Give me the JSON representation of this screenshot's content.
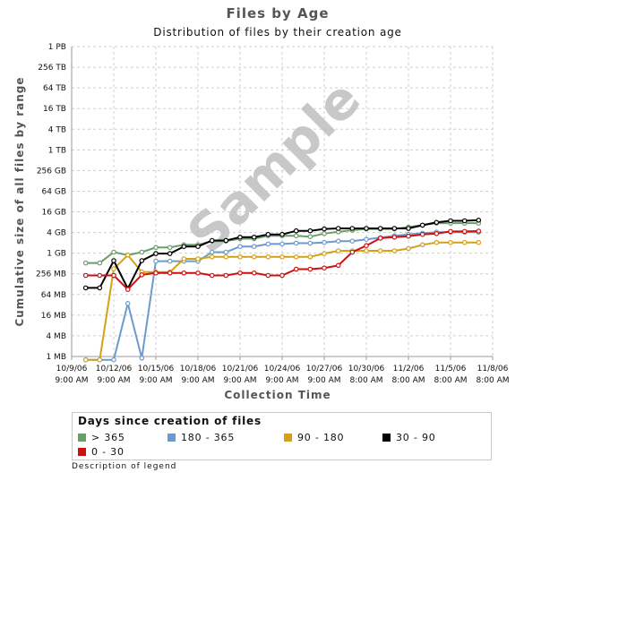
{
  "chart_data": {
    "type": "line",
    "title": "Files by Age",
    "subtitle": "Distribution of files by their creation age",
    "xlabel": "Collection Time",
    "ylabel": "Cumulative size of all files by range",
    "watermark": "Sample",
    "y_scale": "log2",
    "grid": true,
    "x_tick_labels": [
      [
        "10/9/06",
        "9:00 AM"
      ],
      [
        "10/12/06",
        "9:00 AM"
      ],
      [
        "10/15/06",
        "9:00 AM"
      ],
      [
        "10/18/06",
        "9:00 AM"
      ],
      [
        "10/21/06",
        "9:00 AM"
      ],
      [
        "10/24/06",
        "9:00 AM"
      ],
      [
        "10/27/06",
        "9:00 AM"
      ],
      [
        "10/30/06",
        "8:00 AM"
      ],
      [
        "11/2/06",
        "8:00 AM"
      ],
      [
        "11/5/06",
        "8:00 AM"
      ],
      [
        "11/8/06",
        "8:00 AM"
      ]
    ],
    "y_tick_labels": [
      "1 MB",
      "4 MB",
      "16 MB",
      "64 MB",
      "256 MB",
      "1 GB",
      "4 GB",
      "16 GB",
      "64 GB",
      "256 GB",
      "1 TB",
      "4 TB",
      "16 TB",
      "64 TB",
      "256 TB",
      "1 PB"
    ],
    "y_unit": "MB",
    "x": [
      "10/10/06",
      "10/11/06",
      "10/12/06",
      "10/13/06",
      "10/14/06",
      "10/15/06",
      "10/16/06",
      "10/17/06",
      "10/18/06",
      "10/19/06",
      "10/20/06",
      "10/21/06",
      "10/22/06",
      "10/23/06",
      "10/24/06",
      "10/25/06",
      "10/26/06",
      "10/27/06",
      "10/28/06",
      "10/29/06",
      "10/30/06",
      "10/31/06",
      "11/1/06",
      "11/2/06",
      "11/3/06",
      "11/4/06",
      "11/5/06",
      "11/6/06",
      "11/7/06"
    ],
    "series": [
      {
        "name": "> 365",
        "color": "#6a9e6a",
        "values": [
          530,
          530,
          1100,
          900,
          1100,
          1500,
          1500,
          1800,
          1800,
          2300,
          2300,
          2700,
          2700,
          3300,
          3300,
          3300,
          3100,
          3800,
          4300,
          4800,
          5200,
          5200,
          5200,
          5900,
          6700,
          7700,
          7700,
          7700,
          7700
        ]
      },
      {
        "name": "180 - 365",
        "color": "#6b9bcc",
        "values": [
          0.8,
          0.8,
          0.8,
          35,
          0.9,
          600,
          600,
          600,
          600,
          1100,
          1100,
          1600,
          1600,
          1900,
          1900,
          2000,
          2000,
          2100,
          2300,
          2300,
          2600,
          2900,
          3300,
          3600,
          3900,
          4200,
          4200,
          4200,
          4200
        ]
      },
      {
        "name": "90 - 180",
        "color": "#d4a017",
        "values": [
          0.8,
          0.8,
          360,
          900,
          290,
          290,
          290,
          700,
          700,
          800,
          800,
          800,
          800,
          800,
          800,
          800,
          800,
          1000,
          1200,
          1200,
          1200,
          1200,
          1200,
          1400,
          1800,
          2100,
          2100,
          2100,
          2100
        ]
      },
      {
        "name": "30 - 90",
        "color": "#000000",
        "values": [
          100,
          100,
          620,
          95,
          620,
          1000,
          1000,
          1600,
          1600,
          2400,
          2400,
          3000,
          3000,
          3600,
          3600,
          4600,
          4600,
          5200,
          5400,
          5400,
          5400,
          5400,
          5400,
          5400,
          6700,
          8100,
          9000,
          9000,
          9400
        ]
      },
      {
        "name": "0 - 30",
        "color": "#cc1111",
        "values": [
          230,
          230,
          230,
          90,
          240,
          270,
          270,
          270,
          270,
          230,
          230,
          270,
          270,
          230,
          230,
          350,
          350,
          380,
          450,
          1100,
          1700,
          2800,
          3000,
          3200,
          3600,
          3800,
          4400,
          4400,
          4500
        ]
      }
    ],
    "legend": {
      "title": "Days since creation of files",
      "description": "Description of legend",
      "placement": "bottom"
    }
  }
}
